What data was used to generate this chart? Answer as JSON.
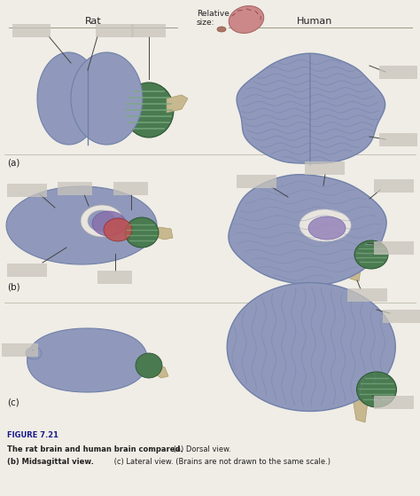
{
  "title": "FIGURE 7.21",
  "caption_bold": "The rat brain and human brain compared.",
  "caption_a": " (a) Dorsal view.",
  "caption_b": "(b) Midsagittal view.",
  "caption_c": "(c) Lateral view. (Brains are not drawn to the same scale.)",
  "relative_size_label": "Relative\nsize:",
  "rat_label": "Rat",
  "human_label": "Human",
  "row_labels": [
    "(a)",
    "(b)",
    "(c)"
  ],
  "bg_color": "#f0ede6",
  "label_box_color": "#c8c4bc",
  "brain_blue": "#9099bb",
  "brain_blue_dark": "#7080aa",
  "brain_blue_light": "#b0b8cc",
  "cerebellum_green": "#4a7a50",
  "cerebellum_green_light": "#7aaa80",
  "brainstem_beige": "#c8b890",
  "brainstem_beige_light": "#ddd0aa",
  "rat_red": "#c05050",
  "rat_purple": "#8870aa",
  "rat_white": "#e8e4de",
  "human_purple": "#9988bb",
  "human_white": "#e8e4de",
  "title_color": "#1a1a8c",
  "text_color": "#222222",
  "line_color": "#444444",
  "sep_color": "#bbbbaa",
  "fig_width": 4.74,
  "fig_height": 5.59,
  "dpi": 100
}
